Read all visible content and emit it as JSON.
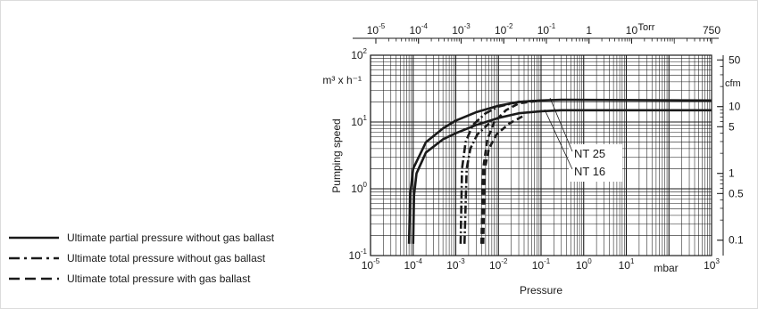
{
  "chart_data": {
    "type": "line",
    "xlabel": "Pressure",
    "ylabel": "Pumping speed",
    "x_unit": "mbar",
    "y_unit": "m³ x h⁻¹",
    "x_top_unit": "Torr",
    "y_right_unit": "cfm",
    "x_scale": "log",
    "y_scale": "log",
    "xlim": [
      1e-05,
      1000
    ],
    "ylim": [
      0.1,
      100
    ],
    "x_ticks": [
      {
        "value": 1e-05,
        "base": "10",
        "exp": "-5"
      },
      {
        "value": 0.0001,
        "base": "10",
        "exp": "-4"
      },
      {
        "value": 0.001,
        "base": "10",
        "exp": "-3"
      },
      {
        "value": 0.01,
        "base": "10",
        "exp": "-2"
      },
      {
        "value": 0.1,
        "base": "10",
        "exp": "-1"
      },
      {
        "value": 1,
        "base": "10",
        "exp": "0"
      },
      {
        "value": 10,
        "base": "10",
        "exp": "1"
      },
      {
        "value": 1000,
        "base": "10",
        "exp": "3"
      }
    ],
    "y_ticks": [
      {
        "value": 0.1,
        "base": "10",
        "exp": "-1"
      },
      {
        "value": 1,
        "base": "10",
        "exp": "0"
      },
      {
        "value": 10,
        "base": "10",
        "exp": "1"
      },
      {
        "value": 100,
        "base": "10",
        "exp": "2"
      }
    ],
    "x_top_ticks": [
      {
        "value": 1e-05,
        "label": "10",
        "exp": "-5"
      },
      {
        "value": 0.0001,
        "label": "10",
        "exp": "-4"
      },
      {
        "value": 0.001,
        "label": "10",
        "exp": "-3"
      },
      {
        "value": 0.01,
        "label": "10",
        "exp": "-2"
      },
      {
        "value": 0.1,
        "label": "10",
        "exp": "-1"
      },
      {
        "value": 1,
        "label": "1",
        "exp": ""
      },
      {
        "value": 10,
        "label": "10",
        "exp": ""
      },
      {
        "value": 750,
        "label": "750",
        "exp": ""
      }
    ],
    "y_right_ticks": [
      {
        "value": 50,
        "label": "50"
      },
      {
        "value": 10,
        "label": "10"
      },
      {
        "value": 5,
        "label": "5"
      },
      {
        "value": 1,
        "label": "1"
      },
      {
        "value": 0.5,
        "label": "0.5"
      },
      {
        "value": 0.1,
        "label": "0.1"
      }
    ],
    "grid": true,
    "legend_position": "bottom-left",
    "legend": [
      {
        "label": "Ultimate partial pressure without gas ballast",
        "style": "solid"
      },
      {
        "label": "Ultimate total pressure without gas ballast",
        "style": "dashdot"
      },
      {
        "label": "Ultimate total pressure with gas ballast",
        "style": "dashed"
      }
    ],
    "annotations": [
      "NT 25",
      "NT 16"
    ],
    "series": [
      {
        "group": "NT 25",
        "style": "solid",
        "x": [
          8e-05,
          8.5e-05,
          0.0001,
          0.0002,
          0.0005,
          0.001,
          0.003,
          0.01,
          0.03,
          0.1,
          0.3,
          1000
        ],
        "y": [
          0.15,
          0.8,
          2.0,
          5.0,
          8.0,
          10.5,
          14.0,
          17.5,
          20.0,
          21.0,
          21.5,
          21.0
        ]
      },
      {
        "group": "NT 16",
        "style": "solid",
        "x": [
          0.0001,
          0.000105,
          0.00012,
          0.0002,
          0.0005,
          0.001,
          0.003,
          0.01,
          0.03,
          0.1,
          0.3,
          1000
        ],
        "y": [
          0.15,
          0.8,
          1.7,
          3.5,
          5.5,
          6.8,
          9.0,
          11.5,
          13.5,
          14.5,
          15.0,
          15.0
        ]
      },
      {
        "group": "NT 25",
        "style": "dashdot",
        "x": [
          0.0013,
          0.0014,
          0.0017,
          0.0025,
          0.005,
          0.01,
          0.03,
          0.1
        ],
        "y": [
          0.15,
          2.0,
          5.0,
          9.0,
          13.5,
          17.0,
          20.0,
          21.0
        ]
      },
      {
        "group": "NT 16",
        "style": "dashdot",
        "x": [
          0.0016,
          0.0018,
          0.0022,
          0.0032,
          0.006
        ],
        "y": [
          0.15,
          2.0,
          4.0,
          6.5,
          9.5
        ]
      },
      {
        "group": "NT 25",
        "style": "dashed",
        "x": [
          0.004,
          0.0044,
          0.0055,
          0.008,
          0.015,
          0.03,
          0.1
        ],
        "y": [
          0.15,
          2.0,
          5.5,
          10.0,
          15.0,
          19.0,
          21.0
        ]
      },
      {
        "group": "NT 16",
        "style": "dashed",
        "x": [
          0.0044,
          0.0048,
          0.006,
          0.009,
          0.018,
          0.04
        ],
        "y": [
          0.15,
          2.0,
          4.0,
          6.5,
          9.5,
          12.5
        ]
      }
    ]
  }
}
